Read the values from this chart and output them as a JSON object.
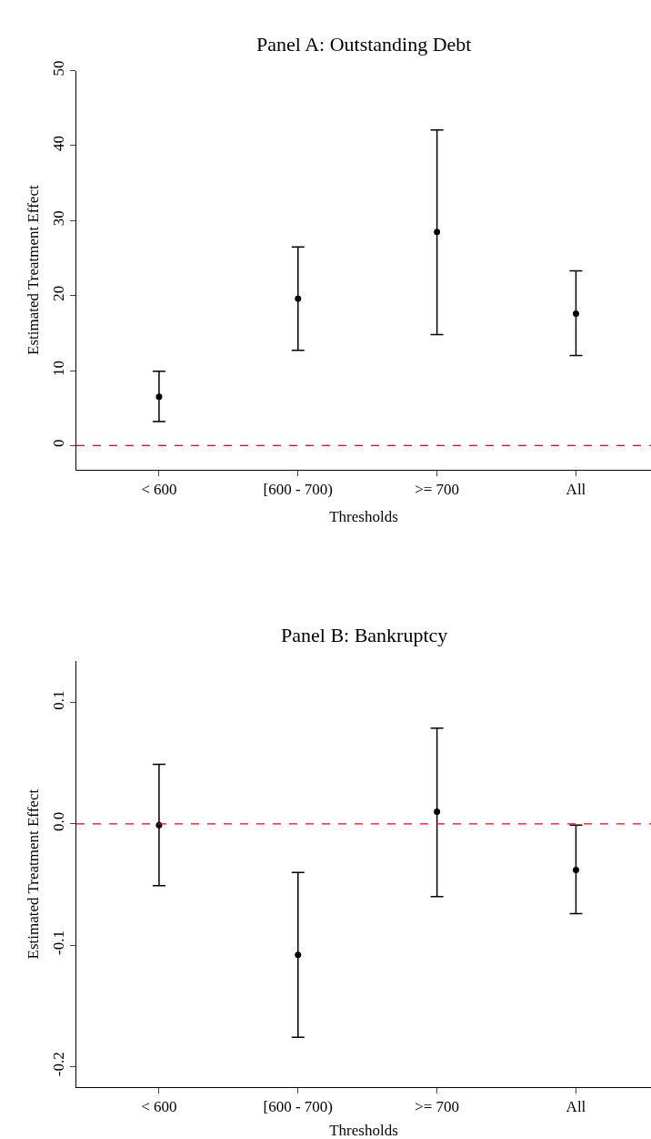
{
  "chart_data": [
    {
      "type": "scatter",
      "title": "Panel A: Outstanding Debt",
      "xlabel": "Thresholds",
      "ylabel": "Estimated Treatment Effect",
      "categories": [
        "< 600",
        "[600 - 700)",
        ">= 700",
        "All"
      ],
      "series": [
        {
          "color": "#000000",
          "values": [
            6.5,
            19.6,
            28.5,
            17.6
          ],
          "errors": [
            [
              3.2,
              9.9
            ],
            [
              12.7,
              26.5
            ],
            [
              14.8,
              42.1
            ],
            [
              12.0,
              23.3
            ]
          ]
        }
      ],
      "ylim": [
        -3.2,
        50
      ],
      "yticks": [
        0,
        10,
        20,
        30,
        40,
        50
      ],
      "marker": "circle",
      "ref_lines": [
        {
          "axis": "y",
          "value": 0,
          "color": "#ff0000",
          "line_style": "dashed"
        }
      ]
    },
    {
      "type": "scatter",
      "title": "Panel B: Bankruptcy",
      "xlabel": "Thresholds",
      "ylabel": "Estimated Treatment Effect",
      "categories": [
        "< 600",
        "[600 - 700)",
        ">= 700",
        "All"
      ],
      "series": [
        {
          "color": "#000000",
          "values": [
            -0.001,
            -0.108,
            0.01,
            -0.038
          ],
          "errors": [
            [
              -0.051,
              0.049
            ],
            [
              -0.176,
              -0.04
            ],
            [
              -0.06,
              0.079
            ],
            [
              -0.074,
              -0.001
            ]
          ]
        }
      ],
      "ylim": [
        -0.217,
        0.134
      ],
      "yticks": [
        {
          "value": -0.2,
          "label": "-0.2"
        },
        {
          "value": -0.1,
          "label": "-0.1"
        },
        {
          "value": 0,
          "label": "0.0"
        },
        {
          "value": 0.1,
          "label": "0.1"
        }
      ],
      "marker": "circle",
      "ref_lines": [
        {
          "axis": "y",
          "value": 0,
          "color": "#ff0000",
          "line_style": "dashed"
        }
      ]
    }
  ]
}
